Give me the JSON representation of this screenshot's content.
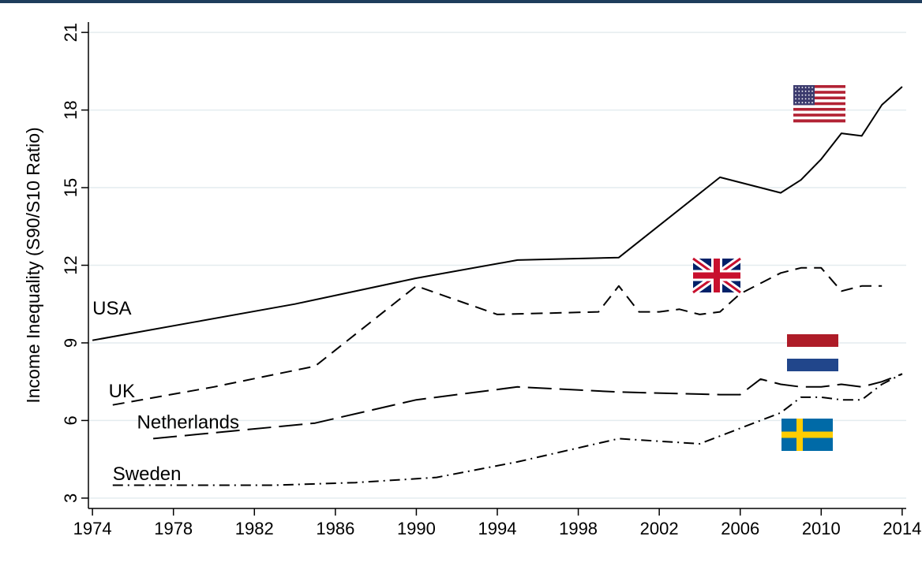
{
  "colors": {
    "frame": "#1f3d5c",
    "grid": "#e4ecef",
    "line": "#000000"
  },
  "chart_data": {
    "type": "line",
    "title": "",
    "xlabel": "",
    "ylabel": "Income Inequality (S90/S10 Ratio)",
    "xlim": [
      1973.8,
      2014.2
    ],
    "ylim": [
      2.6,
      21.4
    ],
    "xticks": [
      1974,
      1978,
      1982,
      1986,
      1990,
      1994,
      1998,
      2002,
      2006,
      2010,
      2014
    ],
    "yticks": [
      3,
      6,
      9,
      12,
      15,
      18,
      21
    ],
    "grid": true,
    "legend": "inline labels with flag icons",
    "series": [
      {
        "name": "USA",
        "style": "solid",
        "flag": "usa-flag-icon",
        "label_pos": [
          1974,
          10.1
        ],
        "x": [
          1974,
          1979,
          1984,
          1990,
          1995,
          2000,
          2005,
          2008,
          2009,
          2010,
          2011,
          2012,
          2013,
          2014
        ],
        "y": [
          9.1,
          9.8,
          10.5,
          11.5,
          12.2,
          12.3,
          15.4,
          14.8,
          15.3,
          16.1,
          17.1,
          17.0,
          18.2,
          18.9
        ]
      },
      {
        "name": "UK",
        "style": "dashed",
        "flag": "uk-flag-icon",
        "label_pos": [
          1974.8,
          6.9
        ],
        "x": [
          1975,
          1980,
          1985,
          1990,
          1994,
          1999,
          2000,
          2001,
          2002,
          2003,
          2004,
          2005,
          2006,
          2008,
          2009,
          2010,
          2011,
          2012,
          2013
        ],
        "y": [
          6.6,
          7.3,
          8.1,
          11.2,
          10.1,
          10.2,
          11.2,
          10.2,
          10.2,
          10.3,
          10.1,
          10.2,
          10.9,
          11.7,
          11.9,
          11.9,
          11.0,
          11.2,
          11.2
        ]
      },
      {
        "name": "Netherlands",
        "style": "longdash",
        "flag": "netherlands-flag-icon",
        "label_pos": [
          1976.2,
          5.7
        ],
        "x": [
          1977,
          1985,
          1990,
          1995,
          2000,
          2005,
          2006,
          2007,
          2008,
          2009,
          2010,
          2011,
          2012,
          2013,
          2014
        ],
        "y": [
          5.3,
          5.9,
          6.8,
          7.3,
          7.1,
          7.0,
          7.0,
          7.6,
          7.4,
          7.3,
          7.3,
          7.4,
          7.3,
          7.5,
          7.8
        ]
      },
      {
        "name": "Sweden",
        "style": "dashdot",
        "flag": "sweden-flag-icon",
        "label_pos": [
          1975,
          3.7
        ],
        "x": [
          1975,
          1980,
          1983,
          1987,
          1991,
          1995,
          2000,
          2004,
          2008,
          2009,
          2010,
          2011,
          2012,
          2013,
          2014
        ],
        "y": [
          3.5,
          3.5,
          3.5,
          3.6,
          3.8,
          4.4,
          5.3,
          5.1,
          6.3,
          6.9,
          6.9,
          6.8,
          6.8,
          7.4,
          7.8
        ]
      }
    ]
  }
}
